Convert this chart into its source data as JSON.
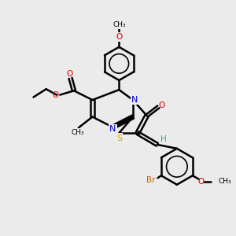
{
  "bg_color": "#ebebeb",
  "bond_color": "#000000",
  "N_color": "#0000cc",
  "O_color": "#dd0000",
  "S_color": "#ccaa00",
  "Br_color": "#bb6600",
  "H_color": "#449999",
  "line_width": 1.8,
  "fig_width": 3.0,
  "fig_height": 3.0,
  "dpi": 100,
  "xlim": [
    0,
    10
  ],
  "ylim": [
    0,
    10
  ]
}
